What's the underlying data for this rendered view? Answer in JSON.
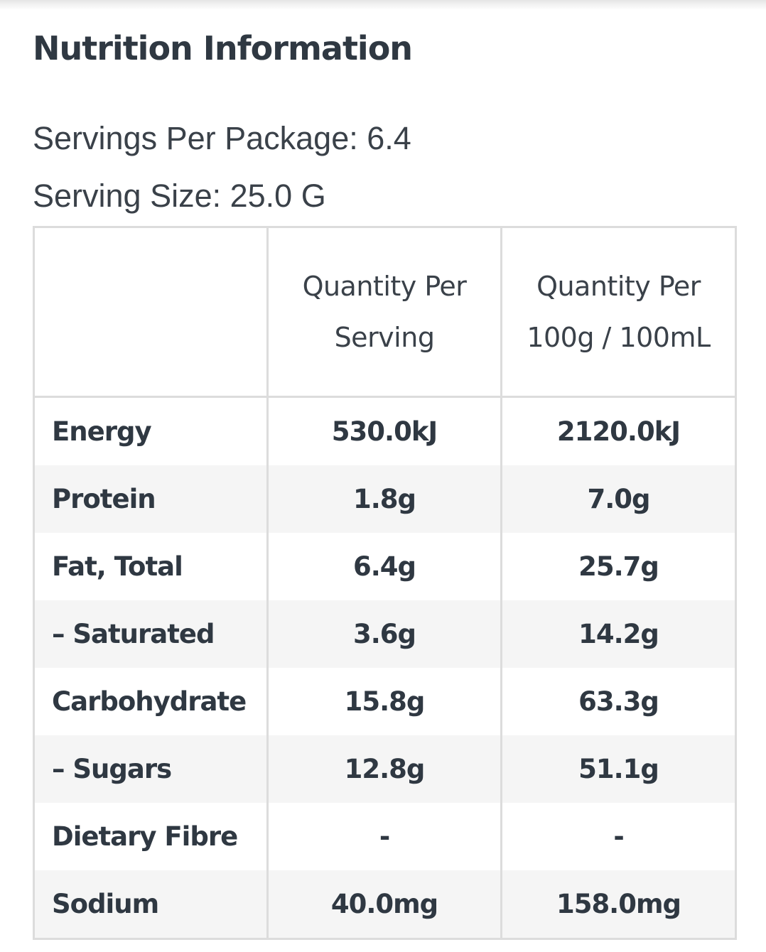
{
  "title": "Nutrition Information",
  "servings_per_package": "Servings Per Package: 6.4",
  "serving_size": "Serving Size: 25.0 G",
  "table": {
    "header": {
      "col1": "",
      "col2_line1": "Quantity Per",
      "col2_line2": "Serving",
      "col3_line1": "Quantity Per",
      "col3_line2": "100g / 100mL"
    },
    "rows": [
      {
        "name": "Energy",
        "per_serving": "530.0kJ",
        "per_100": "2120.0kJ"
      },
      {
        "name": "Protein",
        "per_serving": "1.8g",
        "per_100": "7.0g"
      },
      {
        "name": "Fat, Total",
        "per_serving": "6.4g",
        "per_100": "25.7g"
      },
      {
        "name": "– Saturated",
        "per_serving": "3.6g",
        "per_100": "14.2g"
      },
      {
        "name": "Carbohydrate",
        "per_serving": "15.8g",
        "per_100": "63.3g"
      },
      {
        "name": "– Sugars",
        "per_serving": "12.8g",
        "per_100": "51.1g"
      },
      {
        "name": "Dietary Fibre",
        "per_serving": "-",
        "per_100": "-"
      },
      {
        "name": "Sodium",
        "per_serving": "40.0mg",
        "per_100": "158.0mg"
      }
    ]
  }
}
